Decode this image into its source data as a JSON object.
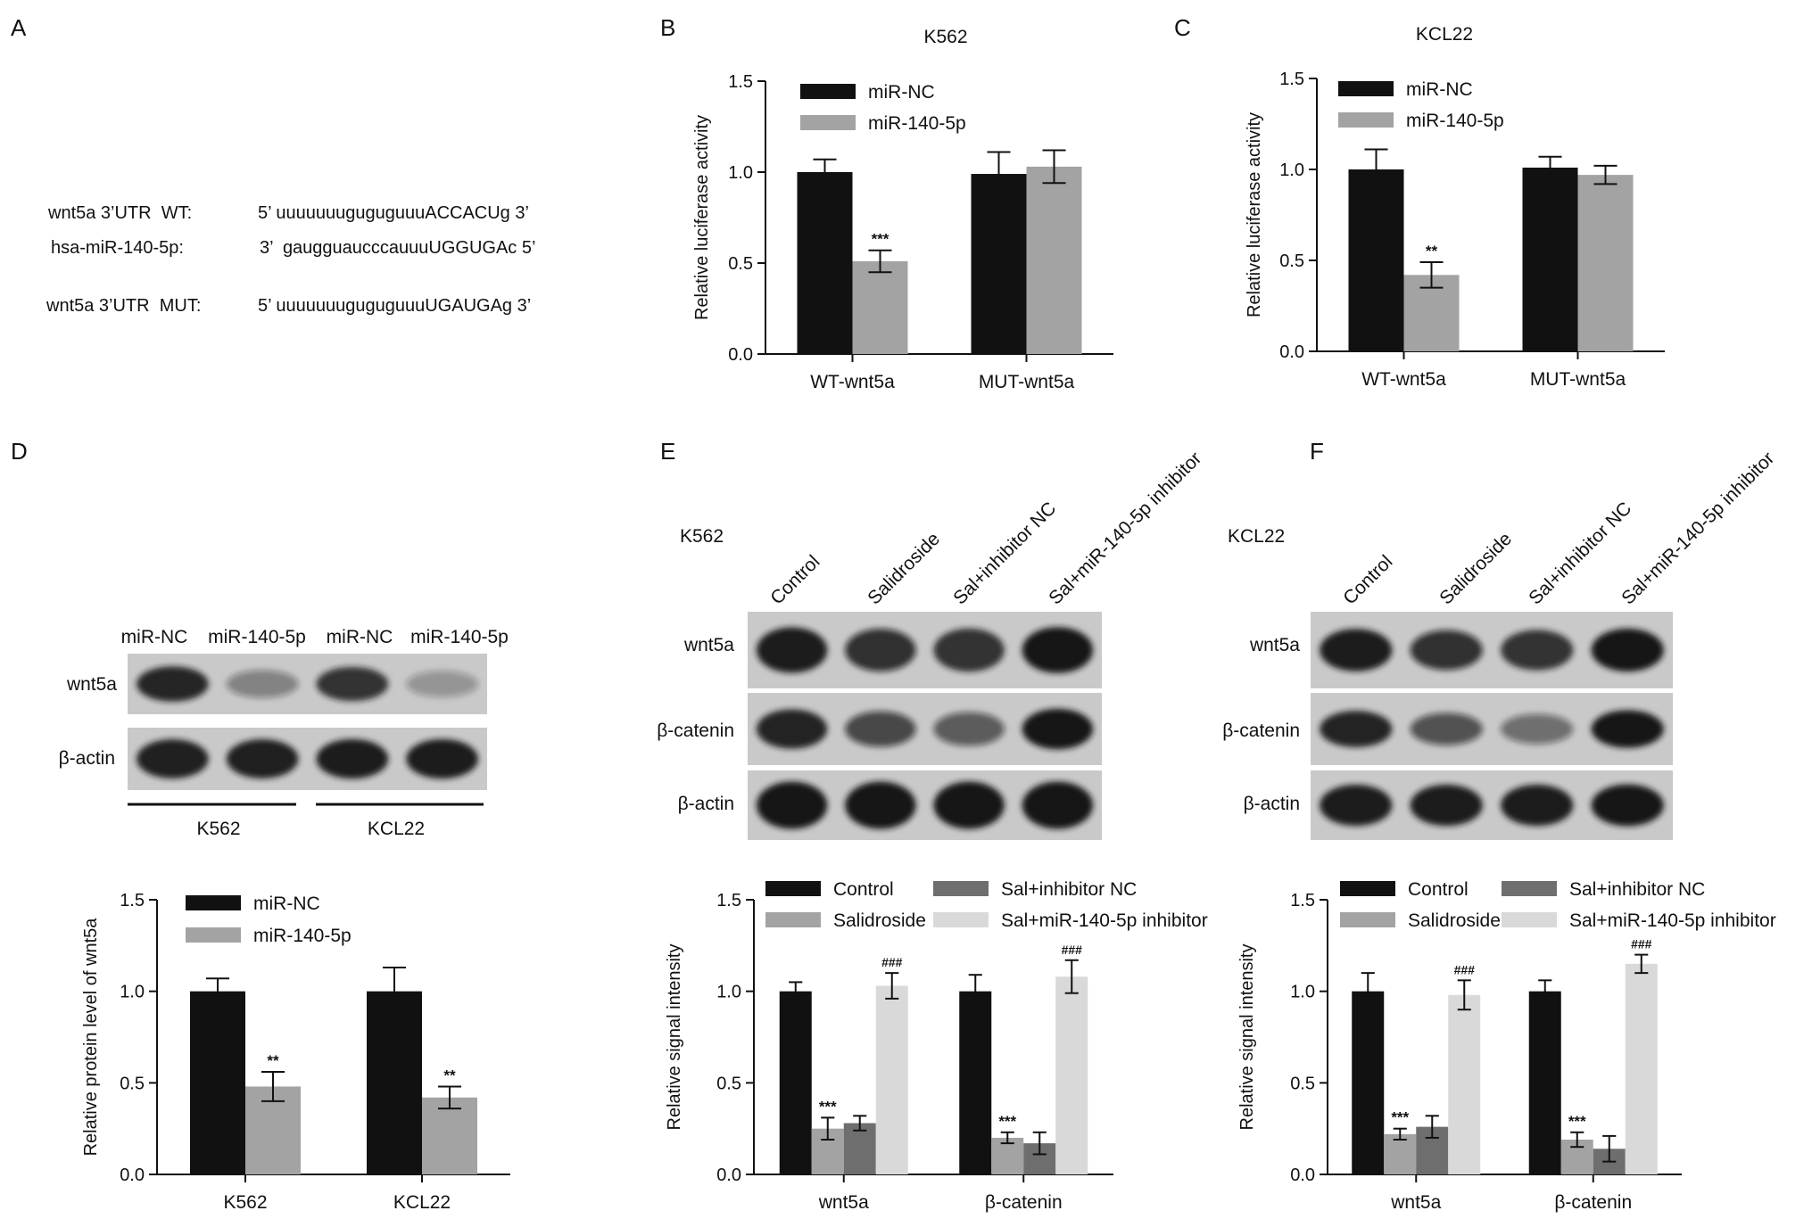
{
  "panel_letters": [
    "A",
    "B",
    "C",
    "D",
    "E",
    "F"
  ],
  "panel_a": {
    "rows": [
      {
        "label": "wnt5a 3’UTR  WT:",
        "sequence": "5’ uuuuuuuguguguuuACCACUg 3’"
      },
      {
        "label": "hsa-miR-140-5p:",
        "sequence": "3’  gaugguaucccauuuUGGUGAc 5’"
      },
      {
        "label": "wnt5a 3’UTR  MUT:",
        "sequence": "5’ uuuuuuuguguguuuUGAUGAg 3’"
      }
    ]
  },
  "panel_d_blot": {
    "lane_labels": [
      "miR-NC",
      "miR-140-5p",
      "miR-NC",
      "miR-140-5p"
    ],
    "row_labels": [
      "wnt5a",
      "β-actin"
    ],
    "group_labels": [
      "K562",
      "KCL22"
    ]
  },
  "panel_e_blot": {
    "cell_line": "K562",
    "lane_labels": [
      "Control",
      "Salidroside",
      "Sal+inhibitor NC",
      "Sal+miR-140-5p inhibitor"
    ],
    "row_labels": [
      "wnt5a",
      "β-catenin",
      "β-actin"
    ]
  },
  "panel_f_blot": {
    "cell_line": "KCL22",
    "lane_labels": [
      "Control",
      "Salidroside",
      "Sal+inhibitor NC",
      "Sal+miR-140-5p inhibitor"
    ],
    "row_labels": [
      "wnt5a",
      "β-catenin",
      "β-actin"
    ]
  },
  "colors": {
    "black_bar": "#111111",
    "grey_bar": "#a3a3a3",
    "dark_grey_bar": "#6e6e6e",
    "light_grey_bar": "#d9d9d9",
    "blot_background": "#c9c9c9",
    "blot_band": "#141414"
  },
  "chart_data": [
    {
      "panel": "B",
      "type": "bar",
      "title": "K562",
      "xlabel": "",
      "ylabel": "Relative luciferase activity",
      "ylim": [
        0,
        1.5
      ],
      "yticks": [
        0.0,
        0.5,
        1.0,
        1.5
      ],
      "categories": [
        "WT-wnt5a",
        "MUT-wnt5a"
      ],
      "legend": "top-left",
      "series": [
        {
          "name": "miR-NC",
          "color": "#111111",
          "values": [
            1.0,
            0.99
          ],
          "errors": [
            0.07,
            0.12
          ],
          "annotations": [
            "",
            ""
          ]
        },
        {
          "name": "miR-140-5p",
          "color": "#a3a3a3",
          "values": [
            0.51,
            1.03
          ],
          "errors": [
            0.06,
            0.09
          ],
          "annotations": [
            "***",
            ""
          ]
        }
      ]
    },
    {
      "panel": "C",
      "type": "bar",
      "title": "KCL22",
      "xlabel": "",
      "ylabel": "Relative luciferase activity",
      "ylim": [
        0,
        1.5
      ],
      "yticks": [
        0.0,
        0.5,
        1.0,
        1.5
      ],
      "categories": [
        "WT-wnt5a",
        "MUT-wnt5a"
      ],
      "legend": "top-left",
      "series": [
        {
          "name": "miR-NC",
          "color": "#111111",
          "values": [
            1.0,
            1.01
          ],
          "errors": [
            0.11,
            0.06
          ],
          "annotations": [
            "",
            ""
          ]
        },
        {
          "name": "miR-140-5p",
          "color": "#a3a3a3",
          "values": [
            0.42,
            0.97
          ],
          "errors": [
            0.07,
            0.05
          ],
          "annotations": [
            "**",
            ""
          ]
        }
      ]
    },
    {
      "panel": "D",
      "type": "bar",
      "title": "",
      "xlabel": "",
      "ylabel": "Relative protein level of wnt5a",
      "ylim": [
        0,
        1.5
      ],
      "yticks": [
        0.0,
        0.5,
        1.0,
        1.5
      ],
      "categories": [
        "K562",
        "KCL22"
      ],
      "legend": "top-left",
      "series": [
        {
          "name": "miR-NC",
          "color": "#111111",
          "values": [
            1.0,
            1.0
          ],
          "errors": [
            0.07,
            0.13
          ],
          "annotations": [
            "",
            ""
          ]
        },
        {
          "name": "miR-140-5p",
          "color": "#a3a3a3",
          "values": [
            0.48,
            0.42
          ],
          "errors": [
            0.08,
            0.06
          ],
          "annotations": [
            "**",
            "**"
          ]
        }
      ]
    },
    {
      "panel": "E",
      "type": "bar",
      "title": "",
      "xlabel": "",
      "ylabel": "Relative signal intensity",
      "ylim": [
        0,
        1.5
      ],
      "yticks": [
        0.0,
        0.5,
        1.0,
        1.5
      ],
      "categories": [
        "wnt5a",
        "β-catenin"
      ],
      "legend": "top",
      "series": [
        {
          "name": "Control",
          "color": "#111111",
          "values": [
            1.0,
            1.0
          ],
          "errors": [
            0.05,
            0.09
          ],
          "annotations": [
            "",
            ""
          ]
        },
        {
          "name": "Salidroside",
          "color": "#a3a3a3",
          "values": [
            0.25,
            0.2
          ],
          "errors": [
            0.06,
            0.03
          ],
          "annotations": [
            "***",
            "***"
          ]
        },
        {
          "name": "Sal+inhibitor NC",
          "color": "#6e6e6e",
          "values": [
            0.28,
            0.17
          ],
          "errors": [
            0.04,
            0.06
          ],
          "annotations": [
            "",
            ""
          ]
        },
        {
          "name": "Sal+miR-140-5p inhibitor",
          "color": "#d9d9d9",
          "values": [
            1.03,
            1.08
          ],
          "errors": [
            0.07,
            0.09
          ],
          "annotations": [
            "###",
            "###"
          ]
        }
      ]
    },
    {
      "panel": "F",
      "type": "bar",
      "title": "",
      "xlabel": "",
      "ylabel": "Relative signal intensity",
      "ylim": [
        0,
        1.5
      ],
      "yticks": [
        0.0,
        0.5,
        1.0,
        1.5
      ],
      "categories": [
        "wnt5a",
        "β-catenin"
      ],
      "legend": "top",
      "series": [
        {
          "name": "Control",
          "color": "#111111",
          "values": [
            1.0,
            1.0
          ],
          "errors": [
            0.1,
            0.06
          ],
          "annotations": [
            "",
            ""
          ]
        },
        {
          "name": "Salidroside",
          "color": "#a3a3a3",
          "values": [
            0.22,
            0.19
          ],
          "errors": [
            0.03,
            0.04
          ],
          "annotations": [
            "***",
            "***"
          ]
        },
        {
          "name": "Sal+inhibitor NC",
          "color": "#6e6e6e",
          "values": [
            0.26,
            0.14
          ],
          "errors": [
            0.06,
            0.07
          ],
          "annotations": [
            "",
            ""
          ]
        },
        {
          "name": "Sal+miR-140-5p inhibitor",
          "color": "#d9d9d9",
          "values": [
            0.98,
            1.15
          ],
          "errors": [
            0.08,
            0.05
          ],
          "annotations": [
            "###",
            "###"
          ]
        }
      ]
    }
  ]
}
